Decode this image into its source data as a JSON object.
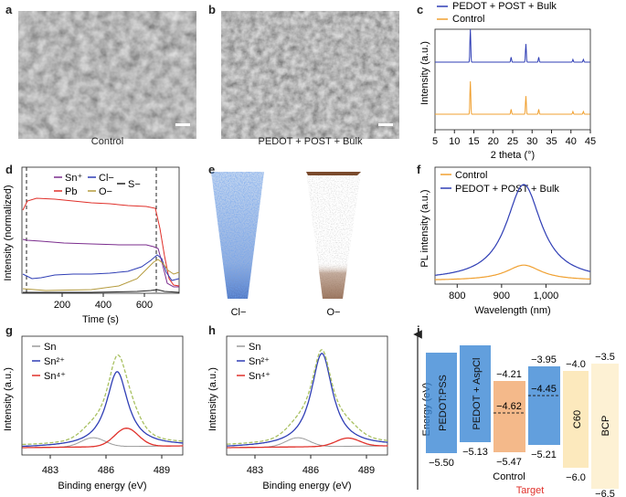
{
  "panels": {
    "a": {
      "letter": "a",
      "caption": "Control"
    },
    "b": {
      "letter": "b",
      "caption": "PEDOT + POST + Bulk"
    },
    "c": {
      "letter": "c"
    },
    "d": {
      "letter": "d"
    },
    "e": {
      "letter": "e",
      "label_left": "Cl−",
      "label_right": "O−"
    },
    "f": {
      "letter": "f"
    },
    "g": {
      "letter": "g"
    },
    "h": {
      "letter": "h"
    },
    "i": {
      "letter": "i"
    }
  },
  "colors": {
    "blue": "#2f3eb5",
    "orange": "#f0a030",
    "red": "#e0302a",
    "purple": "#7b2d8e",
    "olive": "#b49a3c",
    "grey": "#9a9a9a",
    "green_dash": "#a8c060"
  },
  "chart_data": [
    {
      "id": "c",
      "type": "line",
      "xlabel": "2 theta (°)",
      "ylabel": "Intensity (a.u.)",
      "xlim": [
        5,
        45
      ],
      "xticks": [
        "5",
        "10",
        "15",
        "20",
        "25",
        "30",
        "35",
        "40",
        "45"
      ],
      "legend": [
        "PEDOT + POST + Bulk",
        "Control"
      ],
      "peaks": [
        14.1,
        24.6,
        28.4,
        31.7,
        40.5,
        43.2
      ],
      "series": [
        {
          "name": "PEDOT + POST + Bulk",
          "peak_heights": [
            1.0,
            0.15,
            0.55,
            0.15,
            0.08,
            0.08
          ]
        },
        {
          "name": "Control",
          "peak_heights": [
            1.0,
            0.15,
            0.55,
            0.15,
            0.08,
            0.08
          ]
        }
      ]
    },
    {
      "id": "d",
      "type": "line",
      "xlabel": "Time (s)",
      "ylabel": "Intensity (normalized)",
      "xticks": [
        "200",
        "400",
        "600"
      ],
      "legend": [
        "Sn⁺",
        "Cl−",
        "S−",
        "Pb",
        "O−"
      ],
      "dashed_lines_at_s": [
        20,
        640
      ]
    },
    {
      "id": "f",
      "type": "line",
      "xlabel": "Wavelength (nm)",
      "ylabel": "PL intensity (a.u.)",
      "xlim": [
        750,
        1100
      ],
      "xticks": [
        "800",
        "900",
        "1,000"
      ],
      "legend": [
        "Control",
        "PEDOT + POST + Bulk"
      ],
      "series": [
        {
          "name": "Control",
          "peak_nm": 950,
          "relative_height": 0.16
        },
        {
          "name": "PEDOT + POST + Bulk",
          "peak_nm": 950,
          "relative_height": 1.0
        }
      ]
    },
    {
      "id": "g",
      "type": "line",
      "xlabel": "Binding energy (eV)",
      "ylabel": "Intensity (a.u.)",
      "xticks": [
        "483",
        "486",
        "489"
      ],
      "legend": [
        "Sn",
        "Sn²⁺",
        "Sn⁴⁺"
      ]
    },
    {
      "id": "h",
      "type": "line",
      "xlabel": "Binding energy (eV)",
      "ylabel": "Intensity (a.u.)",
      "xticks": [
        "483",
        "486",
        "489"
      ],
      "legend": [
        "Sn",
        "Sn²⁺",
        "Sn⁴⁺"
      ]
    },
    {
      "id": "i",
      "type": "diagram",
      "ylabel": "Energy (eV)",
      "bars": [
        {
          "name": "PEDOT:PSS",
          "bottom": "−5.50"
        },
        {
          "name": "PEDOT + AspCl",
          "bottom": "−5.13"
        },
        {
          "name": "Control",
          "top": "−4.21",
          "fermi": "−4.62",
          "bottom": "−5.47"
        },
        {
          "name": "Target",
          "top": "−3.95",
          "fermi": "−4.45",
          "bottom": "−5.21"
        },
        {
          "name": "C60",
          "top": "−4.0",
          "bottom": "−6.0"
        },
        {
          "name": "BCP",
          "top": "−3.5",
          "bottom": "−6.5"
        }
      ],
      "captions": {
        "control": "Control",
        "target": "Target"
      }
    }
  ]
}
